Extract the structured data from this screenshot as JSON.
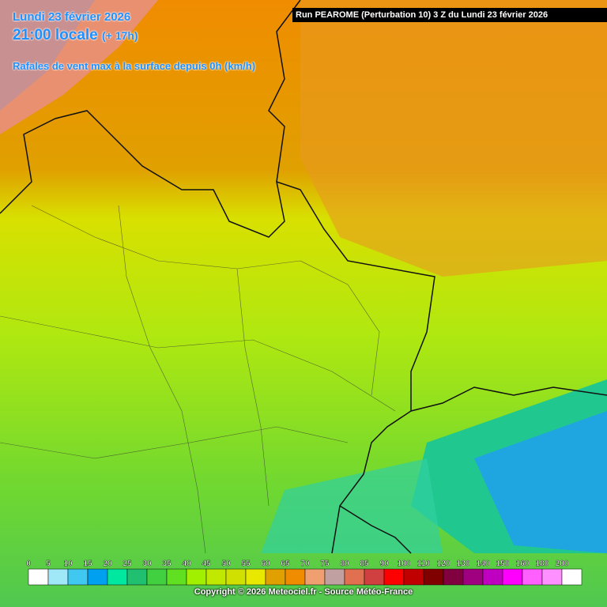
{
  "header": {
    "date": "Lundi 23 février 2026",
    "time": "21:00 locale",
    "offset": "(+ 17h)",
    "parameter": "Rafales de vent max à la surface depuis 0h (km/h)",
    "run": "Run PEAROME (Perturbation 10) 3 Z du Lundi 23 février 2026"
  },
  "legend": {
    "ticks": [
      0,
      5,
      10,
      15,
      20,
      25,
      30,
      35,
      40,
      45,
      50,
      55,
      60,
      65,
      70,
      75,
      80,
      85,
      90,
      100,
      110,
      120,
      130,
      140,
      150,
      160,
      180,
      200
    ],
    "colors": [
      "#ffffff",
      "#a0e8f8",
      "#40c8f0",
      "#00a0f0",
      "#00e8a0",
      "#20c070",
      "#40d040",
      "#60e020",
      "#a0f000",
      "#c0e800",
      "#d0e000",
      "#e8e800",
      "#e0a000",
      "#f08c00",
      "#f0a070",
      "#c0a0a0",
      "#e07050",
      "#d04040",
      "#ff0000",
      "#c00000",
      "#800000",
      "#800040",
      "#a00080",
      "#c000c0",
      "#ff00ff",
      "#ff60ff",
      "#ff90ff",
      "#ffffff"
    ]
  },
  "footer": {
    "copyright": "Copyright © 2026 Meteociel.fr - Source Météo-France"
  }
}
